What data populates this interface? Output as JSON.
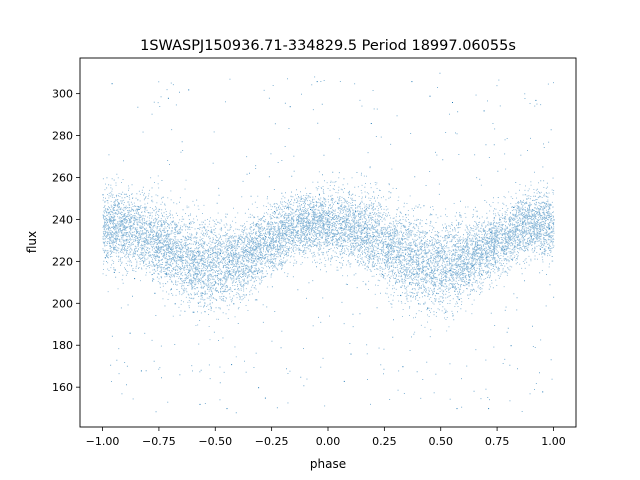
{
  "chart_data": {
    "type": "scatter",
    "title": "1SWASPJ150936.71-334829.5 Period 18997.06055s",
    "xlabel": "phase",
    "ylabel": "flux",
    "xlim": [
      -1.1,
      1.1
    ],
    "ylim": [
      141,
      317
    ],
    "x_ticks": [
      -1.0,
      -0.75,
      -0.5,
      -0.25,
      0.0,
      0.25,
      0.5,
      0.75,
      1.0
    ],
    "x_tick_labels": [
      "−1.00",
      "−0.75",
      "−0.50",
      "−0.25",
      "0.00",
      "0.25",
      "0.50",
      "0.75",
      "1.00"
    ],
    "y_ticks": [
      160,
      180,
      200,
      220,
      240,
      260,
      280,
      300
    ],
    "y_tick_labels": [
      "160",
      "180",
      "200",
      "220",
      "240",
      "260",
      "280",
      "300"
    ],
    "grid": false,
    "marker_color": "#1f77b4",
    "series": [
      {
        "phase": [
          -1.0,
          -0.9,
          -0.8,
          -0.7,
          -0.6,
          -0.5,
          -0.4,
          -0.3,
          -0.2,
          -0.1,
          0.0,
          0.1,
          0.2,
          0.3,
          0.4,
          0.5,
          0.6,
          0.7,
          0.8,
          0.9,
          1.0
        ],
        "flux_center": [
          236,
          236,
          232,
          226,
          220,
          218,
          220,
          226,
          233,
          238,
          238,
          236,
          232,
          226,
          220,
          218,
          220,
          226,
          233,
          238,
          237
        ],
        "flux_spread": [
          14,
          14,
          15,
          16,
          17,
          17,
          15,
          13,
          12,
          12,
          13,
          14,
          15,
          16,
          17,
          17,
          15,
          13,
          12,
          12,
          13
        ],
        "points_x": [
          -1.0,
          -0.99,
          -0.97,
          -0.95,
          -0.93,
          -0.91,
          -0.88,
          -0.86,
          -0.84,
          -0.82,
          -0.79,
          -0.77,
          -0.75,
          -0.72,
          -0.7,
          -0.68,
          -0.66,
          -0.64,
          -0.62,
          -0.6,
          -0.58,
          -0.56,
          -0.54,
          -0.52,
          -0.5,
          -0.48,
          -0.46,
          -0.44,
          -0.42,
          -0.4,
          -0.38,
          -0.36,
          -0.34,
          -0.32,
          -0.3,
          -0.28,
          -0.26,
          -0.24,
          -0.22,
          -0.2,
          -0.18,
          -0.16,
          -0.14,
          -0.12,
          -0.1,
          -0.08,
          -0.06,
          -0.04,
          -0.02,
          0.0,
          0.02,
          0.04,
          0.06,
          0.08,
          0.1,
          0.12,
          0.14,
          0.16,
          0.18,
          0.2,
          0.22,
          0.24,
          0.26,
          0.28,
          0.3,
          0.32,
          0.34,
          0.36,
          0.38,
          0.4,
          0.42,
          0.44,
          0.46,
          0.48,
          0.5,
          0.52,
          0.54,
          0.56,
          0.58,
          0.6,
          0.62,
          0.64,
          0.66,
          0.68,
          0.7,
          0.72,
          0.74,
          0.76,
          0.78,
          0.8,
          0.82,
          0.84,
          0.86,
          0.88,
          0.9,
          0.92,
          0.94,
          0.96,
          0.98,
          1.0,
          -0.96,
          -0.83,
          -0.71,
          -0.57,
          -0.43,
          -0.31,
          -0.17,
          -0.05,
          0.07,
          0.19,
          0.33,
          0.45,
          0.57,
          0.69,
          0.81,
          0.95,
          -0.62,
          0.37,
          -0.28,
          0.71,
          0.1,
          -0.88,
          0.55,
          -0.45,
          0.92
        ],
        "points_y": [
          252,
          222,
          240,
          215,
          248,
          228,
          236,
          212,
          245,
          220,
          238,
          205,
          230,
          214,
          226,
          200,
          222,
          210,
          215,
          196,
          225,
          205,
          218,
          198,
          210,
          224,
          206,
          220,
          200,
          230,
          214,
          225,
          218,
          238,
          222,
          232,
          228,
          244,
          226,
          236,
          246,
          230,
          240,
          250,
          235,
          245,
          228,
          252,
          238,
          242,
          232,
          248,
          236,
          240,
          226,
          244,
          232,
          236,
          220,
          232,
          224,
          214,
          228,
          218,
          222,
          204,
          226,
          210,
          214,
          200,
          220,
          198,
          212,
          205,
          222,
          196,
          216,
          206,
          202,
          226,
          210,
          218,
          228,
          214,
          222,
          234,
          220,
          240,
          226,
          232,
          246,
          228,
          238,
          250,
          232,
          244,
          226,
          248,
          236,
          240,
          305,
          168,
          298,
          152,
          171,
          160,
          294,
          306,
          163,
          286,
          170,
          299,
          150,
          292,
          180,
          158,
          302,
          306,
          155,
          150,
          176,
          186,
          296,
          150,
          297
        ]
      }
    ]
  }
}
